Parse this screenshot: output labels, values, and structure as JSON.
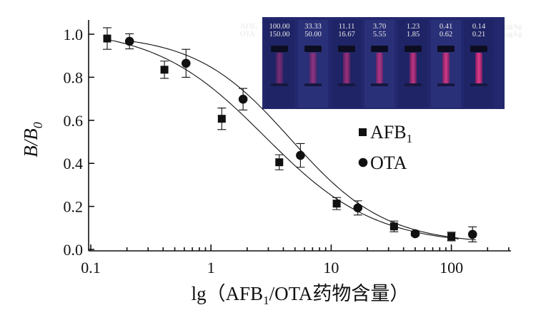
{
  "chart_data": {
    "type": "scatter",
    "x_scale": "log",
    "xlim": [
      0.1,
      350
    ],
    "ylim": [
      0,
      1.05
    ],
    "grid": false,
    "legend_position": "right-middle",
    "x_ticks": [
      0.1,
      1,
      10,
      100
    ],
    "x_tick_labels": [
      "0.1",
      "1",
      "10",
      "100"
    ],
    "y_ticks": [
      0,
      0.2,
      0.4,
      0.6,
      0.8,
      1.0
    ],
    "y_tick_labels": [
      "0.0",
      "0.2",
      "0.4",
      "0.6",
      "0.8",
      "1.0"
    ],
    "xlabel": {
      "prefix": "lg（AFB",
      "sub": "1",
      "suffix": "/OTA药物含量）"
    },
    "ylabel": {
      "main": "B/B",
      "sub": "0"
    },
    "series": [
      {
        "name_main": "AFB",
        "name_sub": "1",
        "marker": "square",
        "points": [
          {
            "x": 0.137,
            "y": 0.98,
            "err": 0.05
          },
          {
            "x": 0.41,
            "y": 0.835,
            "err": 0.04
          },
          {
            "x": 1.23,
            "y": 0.607,
            "err": 0.05
          },
          {
            "x": 3.7,
            "y": 0.405,
            "err": 0.035
          },
          {
            "x": 11.11,
            "y": 0.213,
            "err": 0.028
          },
          {
            "x": 33.33,
            "y": 0.107,
            "err": 0.025
          },
          {
            "x": 100.0,
            "y": 0.06,
            "err": 0.02
          }
        ]
      },
      {
        "name_main": "OTA",
        "name_sub": "",
        "marker": "circle",
        "points": [
          {
            "x": 0.21,
            "y": 0.967,
            "err": 0.035
          },
          {
            "x": 0.62,
            "y": 0.865,
            "err": 0.065
          },
          {
            "x": 1.85,
            "y": 0.698,
            "err": 0.05
          },
          {
            "x": 5.55,
            "y": 0.437,
            "err": 0.055
          },
          {
            "x": 16.67,
            "y": 0.193,
            "err": 0.033
          },
          {
            "x": 50.0,
            "y": 0.073,
            "err": 0.01
          },
          {
            "x": 150.0,
            "y": 0.07,
            "err": 0.035
          }
        ]
      }
    ],
    "inset": {
      "rows": [
        {
          "label_main": "AFB",
          "label_sub": "1",
          "values": [
            "100.00",
            "33.33",
            "11.11",
            "3.70",
            "1.23",
            "0.41",
            "0.14"
          ],
          "unit": "μg/kg"
        },
        {
          "label_main": "OTA",
          "label_sub": "",
          "values": [
            "150.00",
            "50.00",
            "16.67",
            "5.55",
            "1.85",
            "0.62",
            "0.21"
          ],
          "unit": "μg/kg"
        }
      ],
      "background_color": "#23286e",
      "strip_color": "#d62c7c"
    }
  }
}
